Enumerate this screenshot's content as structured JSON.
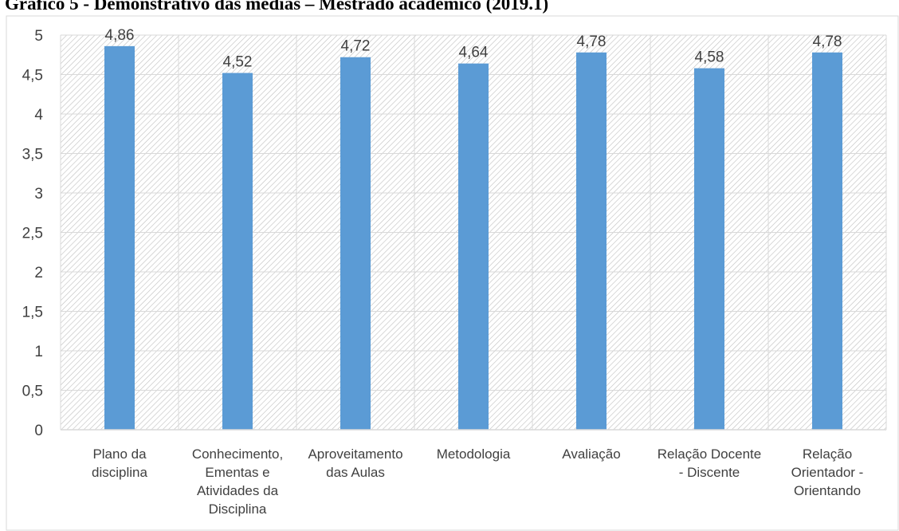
{
  "page_title": "Gráfico 5 - Demonstrativo das médias – Mestrado acadêmico (2019.1)",
  "chart_data": {
    "type": "bar",
    "categories": [
      [
        "Plano da",
        "disciplina"
      ],
      [
        "Conhecimento,",
        "Ementas e",
        "Atividades da",
        "Disciplina"
      ],
      [
        "Aproveitamento",
        "das Aulas"
      ],
      [
        "Metodologia"
      ],
      [
        "Avaliação"
      ],
      [
        "Relação Docente",
        "- Discente"
      ],
      [
        "Relação",
        "Orientador -",
        "Orientando"
      ]
    ],
    "values": [
      4.86,
      4.52,
      4.72,
      4.64,
      4.78,
      4.58,
      4.78
    ],
    "value_labels": [
      "4,86",
      "4,52",
      "4,72",
      "4,64",
      "4,78",
      "4,58",
      "4,78"
    ],
    "y_ticks": [
      "0",
      "0,5",
      "1",
      "1,5",
      "2",
      "2,5",
      "3",
      "3,5",
      "4",
      "4,5",
      "5"
    ],
    "ylim": [
      0,
      5
    ],
    "y_step": 0.5,
    "title": "",
    "xlabel": "",
    "ylabel": "",
    "grid": true,
    "legend": "none",
    "colors": {
      "bar": "#5b9bd5",
      "grid": "#d9d9d9",
      "hatch": "#bfbfbf",
      "border": "#d9d9d9",
      "text": "#404040"
    }
  }
}
